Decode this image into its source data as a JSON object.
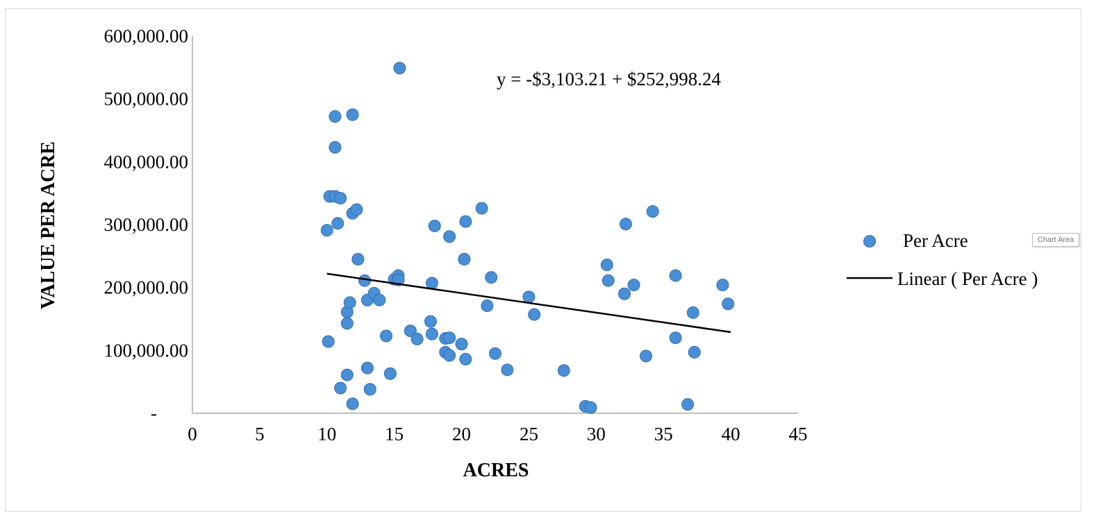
{
  "chart_data": {
    "type": "scatter",
    "title": "",
    "xlabel": "ACRES",
    "ylabel": "VALUE PER ACRE",
    "xlim": [
      0,
      45
    ],
    "ylim": [
      0,
      600000
    ],
    "x_ticks": [
      "0",
      "5",
      "10",
      "15",
      "20",
      "25",
      "30",
      "35",
      "40",
      "45"
    ],
    "y_ticks": [
      "-",
      "100,000.00",
      "200,000.00",
      "300,000.00",
      "400,000.00",
      "500,000.00",
      "600,000.00"
    ],
    "equation": "y = -$3,103.21 + $252,998.24",
    "grid": false,
    "legend_position": "right",
    "colors": {
      "point": "#4a8fd6",
      "point_edge": "#2f6fb5",
      "trendline": "#000000"
    },
    "series": [
      {
        "name": "Per Acre",
        "points": [
          [
            10.0,
            291000
          ],
          [
            10.1,
            114000
          ],
          [
            10.2,
            345000
          ],
          [
            10.6,
            345000
          ],
          [
            10.6,
            423000
          ],
          [
            10.6,
            472000
          ],
          [
            10.8,
            302000
          ],
          [
            11.0,
            342000
          ],
          [
            11.0,
            40000
          ],
          [
            11.5,
            161000
          ],
          [
            11.5,
            143000
          ],
          [
            11.5,
            61000
          ],
          [
            11.7,
            176000
          ],
          [
            11.9,
            318000
          ],
          [
            11.9,
            475000
          ],
          [
            11.9,
            15000
          ],
          [
            12.2,
            324000
          ],
          [
            12.3,
            245000
          ],
          [
            12.8,
            211000
          ],
          [
            13.0,
            180000
          ],
          [
            13.0,
            72000
          ],
          [
            13.2,
            38000
          ],
          [
            13.5,
            191000
          ],
          [
            13.9,
            180000
          ],
          [
            14.4,
            123000
          ],
          [
            14.7,
            63000
          ],
          [
            15.0,
            213000
          ],
          [
            15.3,
            219000
          ],
          [
            15.3,
            212000
          ],
          [
            15.4,
            549000
          ],
          [
            16.2,
            131000
          ],
          [
            16.7,
            118000
          ],
          [
            17.7,
            146000
          ],
          [
            17.8,
            126000
          ],
          [
            17.8,
            207000
          ],
          [
            18.0,
            298000
          ],
          [
            18.8,
            119000
          ],
          [
            18.8,
            97000
          ],
          [
            19.1,
            120000
          ],
          [
            19.1,
            92000
          ],
          [
            19.1,
            281000
          ],
          [
            20.0,
            110000
          ],
          [
            20.2,
            245000
          ],
          [
            20.3,
            86000
          ],
          [
            20.3,
            305000
          ],
          [
            21.5,
            326000
          ],
          [
            21.9,
            171000
          ],
          [
            22.2,
            216000
          ],
          [
            22.5,
            95000
          ],
          [
            23.4,
            69000
          ],
          [
            25.0,
            185000
          ],
          [
            25.4,
            157000
          ],
          [
            27.6,
            68000
          ],
          [
            29.2,
            11000
          ],
          [
            29.6,
            9000
          ],
          [
            30.8,
            236000
          ],
          [
            30.9,
            211000
          ],
          [
            32.1,
            190000
          ],
          [
            32.2,
            301000
          ],
          [
            32.8,
            204000
          ],
          [
            33.7,
            91000
          ],
          [
            34.2,
            321000
          ],
          [
            35.9,
            219000
          ],
          [
            35.9,
            120000
          ],
          [
            36.8,
            14000
          ],
          [
            37.2,
            160000
          ],
          [
            37.3,
            97000
          ],
          [
            39.4,
            204000
          ],
          [
            39.8,
            174000
          ]
        ]
      },
      {
        "name": "Linear ( Per Acre )",
        "type": "line",
        "points": [
          [
            10.0,
            222000
          ],
          [
            40.0,
            129000
          ]
        ]
      }
    ]
  },
  "chart_area_tooltip": "Chart Area"
}
